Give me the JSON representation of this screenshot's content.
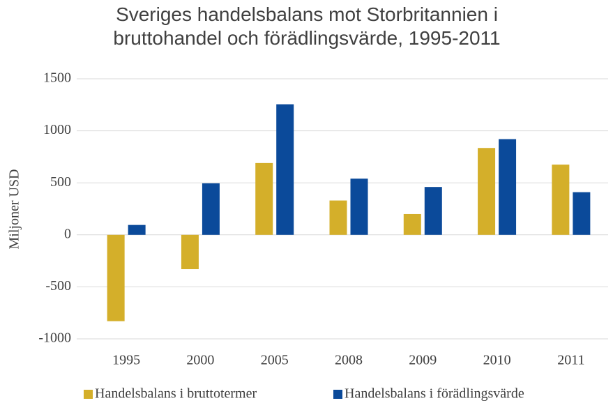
{
  "chart_data": {
    "type": "bar",
    "title": "Sveriges handelsbalans mot Storbritannien i bruttohandel och förädlingsvärde, 1995-2011",
    "ylabel": "Miljoner USD",
    "categories": [
      "1995",
      "2000",
      "2005",
      "2008",
      "2009",
      "2010",
      "2011"
    ],
    "series": [
      {
        "name": "Handelsbalans i bruttotermer",
        "color": "#D4AF2A",
        "values": [
          -830,
          -330,
          690,
          330,
          200,
          835,
          675
        ]
      },
      {
        "name": "Handelsbalans i förädlingsvärde",
        "color": "#0B4A9A",
        "values": [
          95,
          495,
          1255,
          540,
          460,
          920,
          410
        ]
      }
    ],
    "ylim": [
      -1000,
      1500
    ],
    "yticks": [
      -1000,
      -500,
      0,
      500,
      1000,
      1500
    ],
    "grid": true,
    "legend": "bottom"
  }
}
